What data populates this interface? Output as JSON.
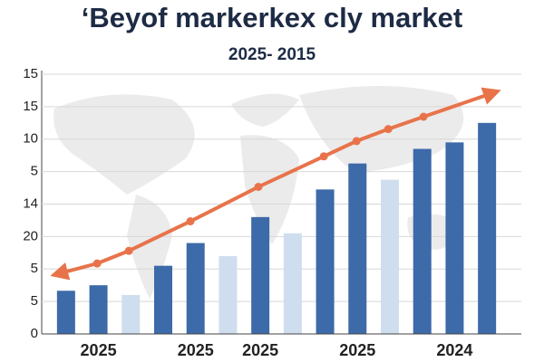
{
  "chart_data": {
    "type": "bar",
    "title": "‘Beyof markerkex cly market",
    "subtitle": "2025- 2015",
    "categories": [
      null,
      "2025",
      null,
      null,
      "2025",
      null,
      "2025",
      null,
      null,
      "2025",
      null,
      null,
      "2024",
      null
    ],
    "values": [
      1.33,
      1.5,
      1.2,
      2.1,
      2.8,
      2.4,
      3.6,
      3.1,
      4.45,
      5.25,
      4.75,
      5.7,
      5.9,
      6.5
    ],
    "colors": [
      "#3d6aa8",
      "#3d6aa8",
      "#cfdeef",
      "#3d6aa8",
      "#3d6aa8",
      "#cfdeef",
      "#3d6aa8",
      "#cfdeef",
      "#3d6aa8",
      "#3d6aa8",
      "#cfdeef",
      "#3d6aa8",
      "#3d6aa8",
      "#3d6aa8"
    ],
    "trend": {
      "color": "#e8734a",
      "x": [
        -0.22,
        0.96,
        1.94,
        3.84,
        5.94,
        7.96,
        8.97,
        9.95,
        11.04,
        13.17
      ],
      "values": [
        1.86,
        2.17,
        2.56,
        3.47,
        4.53,
        5.47,
        5.94,
        6.31,
        6.69,
        7.42
      ]
    },
    "ylim": [
      0,
      8
    ],
    "yticks": [
      0,
      {
        "value": 1,
        "label": "5"
      },
      {
        "value": 2,
        "label": "5"
      },
      {
        "value": 3,
        "label": "20"
      },
      {
        "value": 4,
        "label": "14"
      },
      5,
      {
        "value": 6,
        "label": "10"
      },
      {
        "value": 7,
        "label": "15"
      },
      {
        "value": 8,
        "label": "15"
      }
    ],
    "grid": true
  }
}
